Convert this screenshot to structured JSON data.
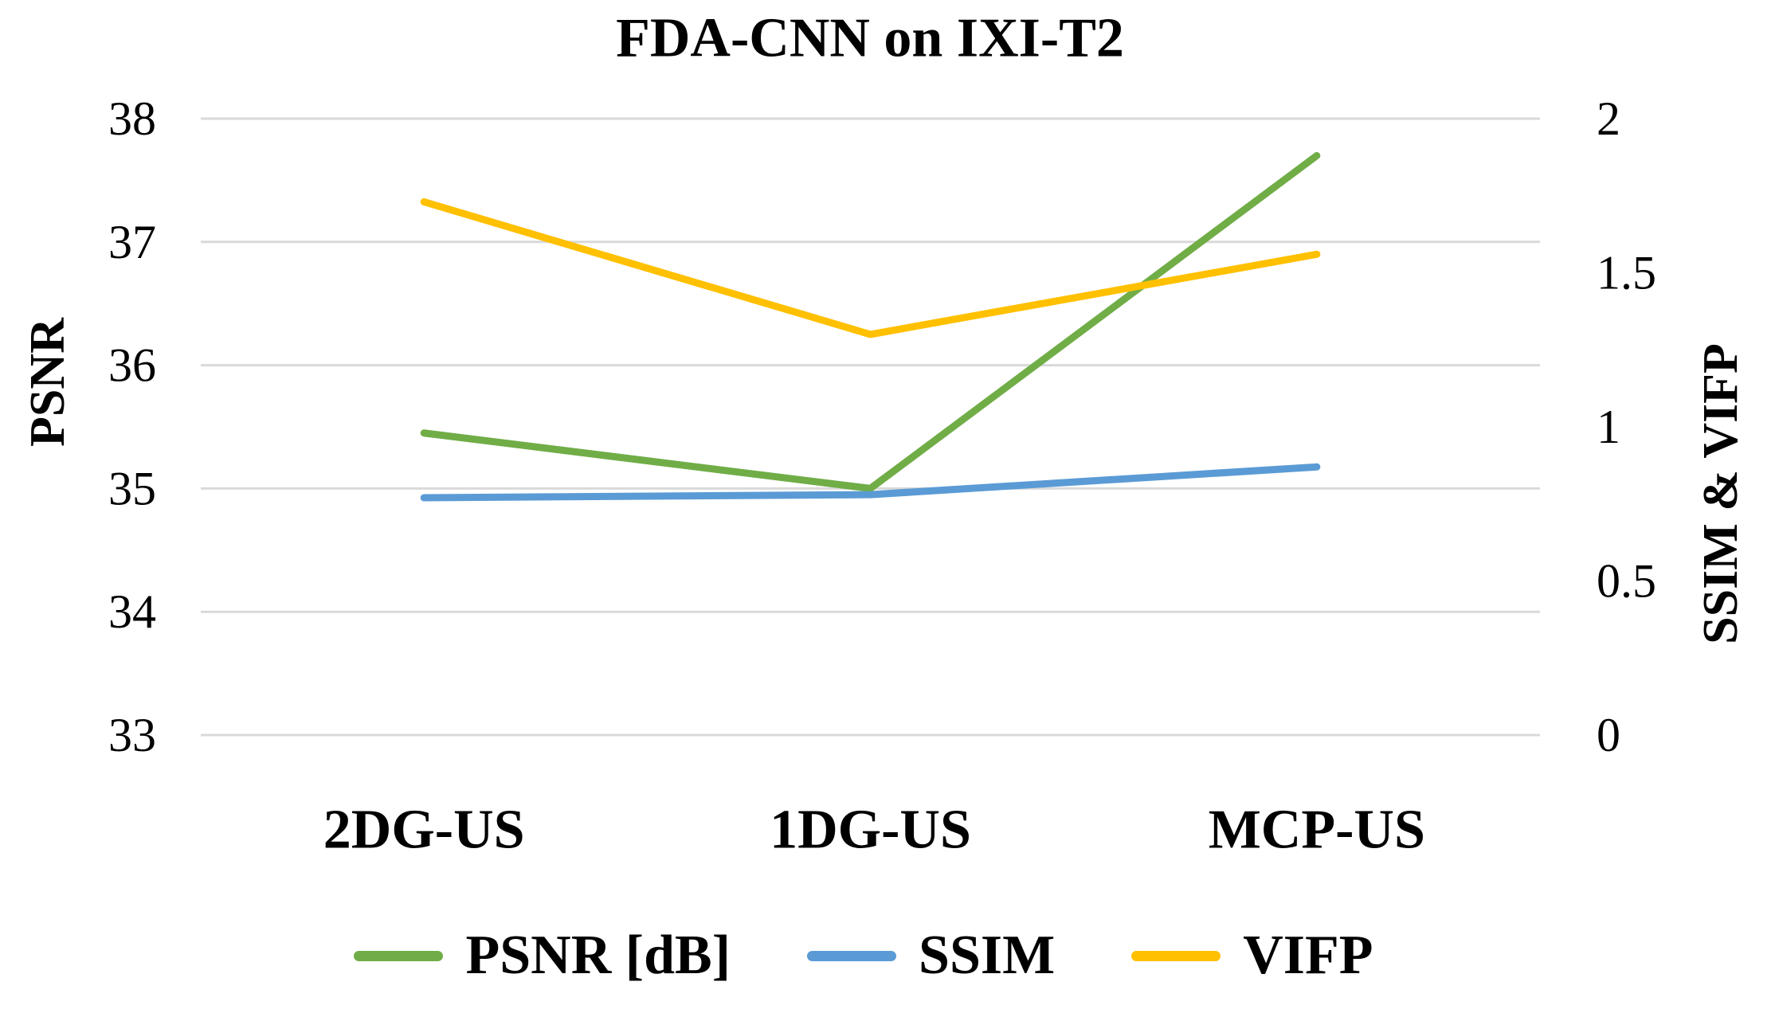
{
  "title": "FDA-CNN on IXI-T2",
  "chart_data": {
    "type": "line",
    "title": "FDA-CNN on IXI-T2",
    "categories": [
      "2DG-US",
      "1DG-US",
      "MCP-US"
    ],
    "left_axis": {
      "label": "PSNR",
      "min": 33,
      "max": 38,
      "tick_labels": [
        "38",
        "37",
        "36",
        "35",
        "34",
        "33"
      ]
    },
    "right_axis": {
      "label": "SSIM & VIFP",
      "min": 0,
      "max": 2,
      "tick_labels": [
        "2",
        "1.5",
        "1",
        "0.5",
        "0"
      ]
    },
    "series": [
      {
        "name": "PSNR [dB]",
        "axis": "left",
        "color": "#70AD47",
        "values": [
          35.45,
          35.0,
          37.7
        ]
      },
      {
        "name": "SSIM",
        "axis": "right",
        "color": "#5B9BD5",
        "values": [
          0.77,
          0.78,
          0.87
        ]
      },
      {
        "name": "VIFP",
        "axis": "right",
        "color": "#FFC000",
        "values": [
          1.73,
          1.3,
          1.56
        ]
      }
    ],
    "grid": true,
    "gridline_color": "#D9D9D9",
    "background_color": "#FFFFFF",
    "text_color": "#000000",
    "legend_position": "bottom"
  }
}
